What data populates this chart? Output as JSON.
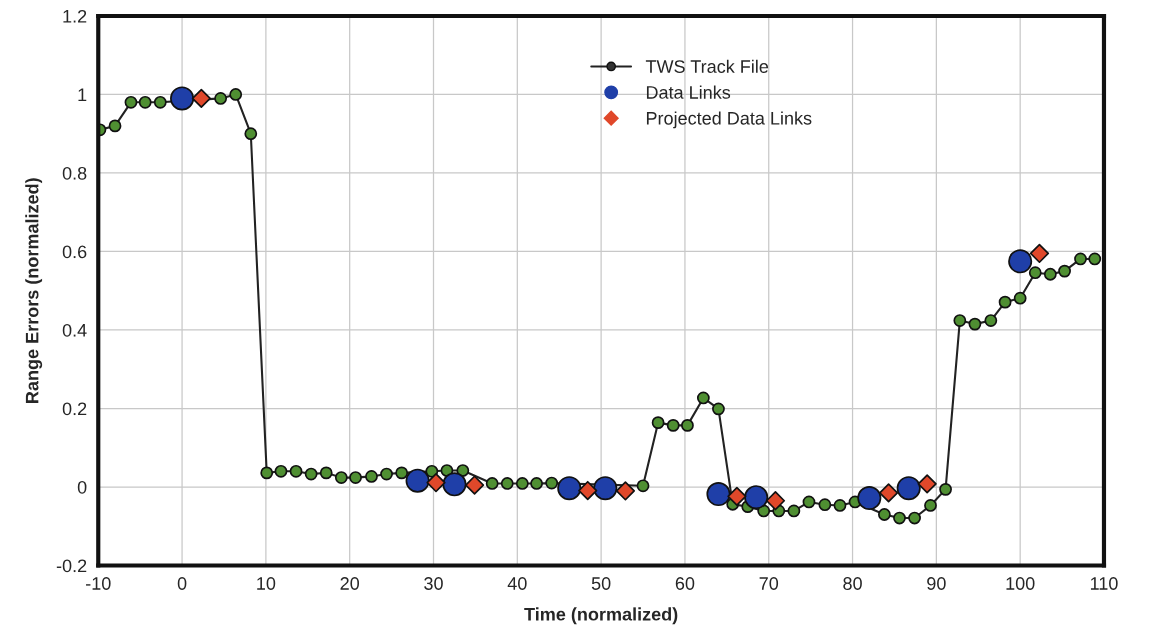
{
  "chart_data": {
    "type": "line",
    "xlabel": "Time (normalized)",
    "ylabel": "Range Errors (normalized)",
    "xlim": [
      -10,
      110
    ],
    "xticks": [
      -10,
      0,
      10,
      20,
      30,
      40,
      50,
      60,
      70,
      80,
      90,
      100,
      110
    ],
    "ylim": [
      -0.2,
      1.2
    ],
    "yticks": [
      -0.2,
      0,
      0.2,
      0.4,
      0.6,
      0.8,
      1,
      1.2
    ],
    "grid": true,
    "legend": "top",
    "series": [
      {
        "name": "TWS Track File",
        "marker": "circle",
        "color": "#4f8f32",
        "x": [
          -9.8,
          -8.0,
          -6.1,
          -4.4,
          -2.6,
          4.6,
          6.4,
          8.2,
          10.1,
          11.8,
          13.6,
          15.4,
          17.2,
          19.0,
          20.7,
          22.6,
          24.4,
          26.2,
          29.8,
          31.6,
          33.5,
          37.0,
          38.8,
          40.6,
          42.3,
          44.1,
          55.0,
          56.8,
          58.6,
          60.3,
          62.2,
          64.0,
          65.7,
          67.5,
          69.4,
          71.2,
          73.0,
          74.8,
          76.7,
          78.5,
          80.3,
          83.8,
          85.6,
          87.4,
          89.3,
          91.1,
          92.8,
          94.6,
          96.5,
          98.2,
          100.0,
          101.8,
          103.6,
          105.3,
          107.2,
          108.9
        ],
        "values": [
          0.91,
          0.92,
          0.98,
          0.98,
          0.98,
          0.99,
          1.0,
          0.9,
          0.036,
          0.04,
          0.04,
          0.033,
          0.036,
          0.024,
          0.024,
          0.027,
          0.033,
          0.036,
          0.04,
          0.042,
          0.042,
          0.009,
          0.009,
          0.009,
          0.009,
          0.01,
          0.003,
          0.164,
          0.157,
          0.157,
          0.227,
          0.199,
          -0.044,
          -0.05,
          -0.061,
          -0.061,
          -0.061,
          -0.038,
          -0.045,
          -0.047,
          -0.038,
          -0.07,
          -0.079,
          -0.079,
          -0.047,
          -0.006,
          0.424,
          0.415,
          0.424,
          0.471,
          0.481,
          0.546,
          0.542,
          0.55,
          0.581,
          0.581
        ]
      },
      {
        "name": "Data Links",
        "type": "scatter",
        "marker": "circle",
        "color": "#1f3fa8",
        "x": [
          0,
          28.1,
          32.5,
          46.2,
          50.5,
          64.0,
          68.5,
          82.0,
          86.7,
          100.0
        ],
        "values": [
          0.99,
          0.016,
          0.007,
          -0.003,
          -0.003,
          -0.018,
          -0.026,
          -0.028,
          -0.003,
          0.575
        ]
      },
      {
        "name": "Projected Data Links",
        "type": "scatter",
        "marker": "diamond",
        "color": "#e0482a",
        "x": [
          2.3,
          30.3,
          34.9,
          48.4,
          52.9,
          66.2,
          70.8,
          84.3,
          88.9,
          102.3
        ],
        "values": [
          0.99,
          0.011,
          0.005,
          -0.009,
          -0.01,
          -0.024,
          -0.035,
          -0.015,
          0.008,
          0.595
        ]
      }
    ]
  }
}
